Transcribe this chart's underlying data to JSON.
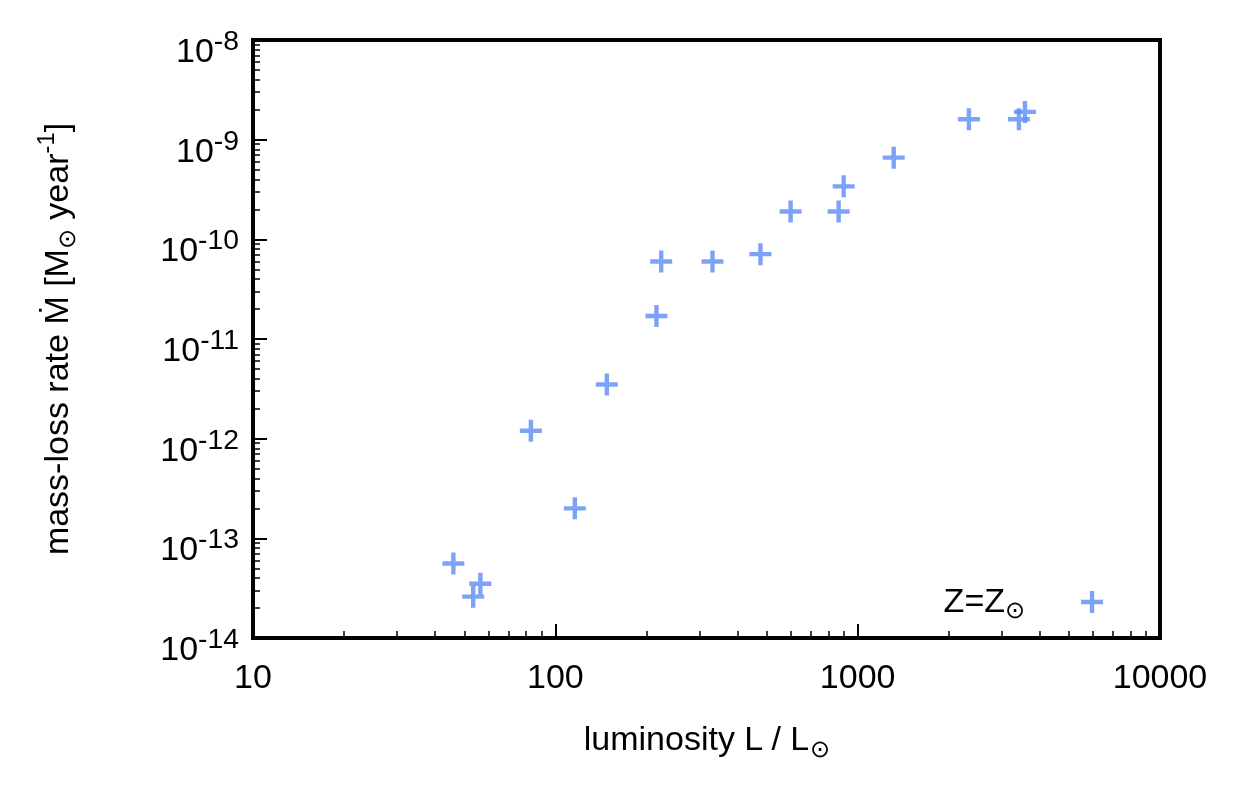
{
  "chart_data": {
    "type": "scatter",
    "xlabel": "luminosity L / L$_{⊙}$",
    "ylabel": "mass-loss rate Ṁ [M$_{⊙}$ year$^{-1}$]",
    "x": [
      46,
      53.5,
      56.5,
      83,
      116,
      148,
      216,
      224,
      331,
      477,
      600,
      865,
      899,
      1316,
      2333,
      3414,
      3575,
      5960
    ],
    "series": [
      {
        "color": "#5b8cf5",
        "values": [
          5.6e-14,
          2.6e-14,
          3.5e-14,
          1.2e-12,
          2e-13,
          3.5e-12,
          1.7e-11,
          6e-11,
          6e-11,
          7.1e-11,
          1.9e-10,
          1.9e-10,
          3.4e-10,
          6.6e-10,
          1.6e-09,
          1.6e-09,
          1.9e-09,
          2.3e-14
        ]
      }
    ],
    "log": "xy",
    "xlim": [
      10,
      10000
    ],
    "xticks": [
      10,
      100,
      1000,
      10000
    ],
    "ylim": [
      1e-14,
      1e-08
    ],
    "yticks": [
      {
        "value": 1e-14,
        "label": "10$^{-14}$"
      },
      {
        "value": 1e-13,
        "label": "10$^{-13}$"
      },
      {
        "value": 1e-12,
        "label": "10$^{-12}$"
      },
      {
        "value": 1e-11,
        "label": "10$^{-11}$"
      },
      {
        "value": 1e-10,
        "label": "10$^{-10}$"
      },
      {
        "value": 1e-09,
        "label": "10$^{-9}$"
      },
      {
        "value": 1e-08,
        "label": "10$^{-8}$"
      }
    ],
    "annotations": [
      "Z=Z$_{⊙}$"
    ],
    "marker": "cross",
    "grid": false
  }
}
